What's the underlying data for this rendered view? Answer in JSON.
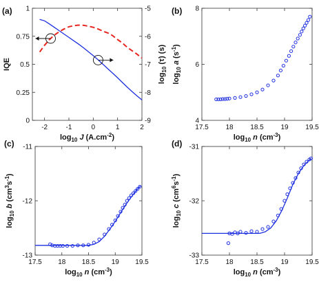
{
  "chart_data": [
    {
      "panel": "(a)",
      "type": "line",
      "xlabel": "log10 J (A.cm-2)",
      "xlabel_parts": {
        "pre": "log",
        "sub": "10",
        "var": "J",
        "unit": "(A.cm",
        "sup": "-2",
        "end": ")"
      },
      "ylabel": "IQE",
      "y2label": "log10 (τ) (s)",
      "y2label_parts": {
        "pre": "log",
        "sub": "10",
        "end": " (τ) (s)"
      },
      "xlim": [
        -2.5,
        2
      ],
      "ylim": [
        0,
        1
      ],
      "y2lim": [
        -9,
        -5
      ],
      "xticks": [
        "-2",
        "-1",
        "0",
        "1",
        "2"
      ],
      "xtick_values": [
        -2,
        -1,
        0,
        1,
        2
      ],
      "yticks": [
        "0",
        "0.25",
        "0.5",
        "0.75",
        "1"
      ],
      "ytick_values": [
        0,
        0.25,
        0.5,
        0.75,
        1
      ],
      "y2ticks": [
        "-5",
        "-6",
        "-7",
        "-8",
        "-9"
      ],
      "y2tick_values": [
        -5,
        -6,
        -7,
        -8,
        -9
      ],
      "series": [
        {
          "axis": "left",
          "style": "dashed",
          "color": "#e8251f",
          "x": [
            -2.2,
            -2.0,
            -1.8,
            -1.6,
            -1.4,
            -1.2,
            -1.0,
            -0.8,
            -0.6,
            -0.4,
            -0.2,
            0.0,
            0.2,
            0.4,
            0.6,
            0.8,
            1.0,
            1.2,
            1.4,
            1.6,
            1.8,
            2.0
          ],
          "y": [
            0.61,
            0.67,
            0.72,
            0.76,
            0.79,
            0.815,
            0.835,
            0.845,
            0.85,
            0.848,
            0.84,
            0.83,
            0.815,
            0.795,
            0.78,
            0.755,
            0.72,
            0.69,
            0.65,
            0.62,
            0.59,
            0.555
          ]
        },
        {
          "axis": "right",
          "style": "solid",
          "color": "#1d2fe0",
          "x": [
            -2.2,
            -2.0,
            -1.8,
            -1.6,
            -1.4,
            -1.2,
            -1.0,
            -0.8,
            -0.6,
            -0.4,
            -0.2,
            0.0,
            0.2,
            0.4,
            0.6,
            0.8,
            1.0,
            1.2,
            1.4,
            1.6,
            1.8,
            2.0
          ],
          "y": [
            -5.4,
            -5.45,
            -5.56,
            -5.68,
            -5.8,
            -5.92,
            -6.04,
            -6.16,
            -6.28,
            -6.41,
            -6.55,
            -6.69,
            -6.84,
            -7.0,
            -7.16,
            -7.32,
            -7.48,
            -7.65,
            -7.82,
            -7.98,
            -8.13,
            -8.27
          ]
        }
      ],
      "annotations": [
        {
          "type": "circle-arrow",
          "x": -1.75,
          "y": 0.73,
          "axis": "left",
          "direction": "left"
        },
        {
          "type": "circle-arrow",
          "x": 0.2,
          "y": -6.85,
          "axis": "right",
          "direction": "right"
        }
      ]
    },
    {
      "panel": "(b)",
      "type": "scatter",
      "xlabel": "log10 n (cm-3)",
      "xlabel_parts": {
        "pre": "log",
        "sub": "10",
        "var": "n",
        "unit": "(cm",
        "sup": "-3",
        "end": ")"
      },
      "ylabel": "log10 a (s-1)",
      "ylabel_parts": {
        "pre": "log",
        "sub": "10",
        "var": "a",
        "unit": "(s",
        "sup": "-1",
        "end": ")"
      },
      "xlim": [
        17.5,
        19.5
      ],
      "ylim": [
        4,
        8
      ],
      "xticks": [
        "17.5",
        "18",
        "18.5",
        "19",
        "19.5"
      ],
      "xtick_values": [
        17.5,
        18,
        18.5,
        19,
        19.5
      ],
      "yticks": [
        "4",
        "6",
        "8"
      ],
      "ytick_values": [
        4,
        6,
        8
      ],
      "series": [
        {
          "style": "markers",
          "color": "#1d2fe0",
          "x": [
            17.76,
            17.8,
            17.84,
            17.88,
            17.92,
            17.96,
            18.0,
            18.1,
            18.2,
            18.3,
            18.4,
            18.5,
            18.6,
            18.7,
            18.8,
            18.88,
            18.93,
            18.98,
            19.03,
            19.08,
            19.12,
            19.16,
            19.2,
            19.24,
            19.28,
            19.31,
            19.34,
            19.37,
            19.4,
            19.43,
            19.46
          ],
          "y": [
            4.75,
            4.75,
            4.75,
            4.76,
            4.76,
            4.77,
            4.78,
            4.8,
            4.83,
            4.87,
            4.93,
            5.0,
            5.1,
            5.25,
            5.42,
            5.6,
            5.78,
            5.95,
            6.13,
            6.3,
            6.47,
            6.63,
            6.78,
            6.92,
            7.05,
            7.17,
            7.28,
            7.38,
            7.48,
            7.58,
            7.7
          ]
        }
      ]
    },
    {
      "panel": "(c)",
      "type": "line",
      "xlabel": "log10 n (cm-3)",
      "xlabel_parts": {
        "pre": "log",
        "sub": "10",
        "var": "n",
        "unit": "(cm",
        "sup": "-3",
        "end": ")"
      },
      "ylabel": "log10 b (cm3s-1)",
      "ylabel_parts": {
        "pre": "log",
        "sub": "10",
        "var": "b",
        "unit": "(cm",
        "sup": "3",
        "mid": "s",
        "sup2": "-1",
        "end": ")"
      },
      "xlim": [
        17.5,
        19.5
      ],
      "ylim": [
        -13,
        -11
      ],
      "xticks": [
        "17.5",
        "18",
        "18.5",
        "19",
        "19.5"
      ],
      "xtick_values": [
        17.5,
        18,
        18.5,
        19,
        19.5
      ],
      "yticks": [
        "-11",
        "-12",
        "-13"
      ],
      "ytick_values": [
        -11,
        -12,
        -13
      ],
      "series": [
        {
          "style": "solid",
          "color": "#1d2fe0",
          "x": [
            17.5,
            18.5,
            18.6,
            18.7,
            18.8,
            18.9,
            19.0,
            19.1,
            19.2,
            19.3,
            19.4,
            19.47
          ],
          "y": [
            -12.82,
            -12.82,
            -12.8,
            -12.75,
            -12.65,
            -12.52,
            -12.38,
            -12.22,
            -12.07,
            -11.93,
            -11.8,
            -11.73
          ]
        },
        {
          "style": "markers",
          "color": "#1d2fe0",
          "x": [
            17.78,
            17.82,
            17.87,
            17.92,
            17.97,
            18.02,
            18.1,
            18.2,
            18.3,
            18.4,
            18.5,
            18.6,
            18.7,
            18.8,
            18.88,
            18.94,
            19.0,
            19.05,
            19.1,
            19.14,
            19.18,
            19.22,
            19.26,
            19.3,
            19.34,
            19.38,
            19.42,
            19.46
          ],
          "y": [
            -12.8,
            -12.82,
            -12.83,
            -12.83,
            -12.83,
            -12.83,
            -12.83,
            -12.83,
            -12.82,
            -12.82,
            -12.81,
            -12.77,
            -12.71,
            -12.62,
            -12.52,
            -12.44,
            -12.36,
            -12.28,
            -12.2,
            -12.13,
            -12.07,
            -12.0,
            -11.95,
            -11.9,
            -11.86,
            -11.82,
            -11.78,
            -11.74
          ]
        }
      ]
    },
    {
      "panel": "(d)",
      "type": "line",
      "xlabel": "log10 n (cm-3)",
      "xlabel_parts": {
        "pre": "log",
        "sub": "10",
        "var": "n",
        "unit": "(cm",
        "sup": "-3",
        "end": ")"
      },
      "ylabel": "log10 c (cm6s-1)",
      "ylabel_parts": {
        "pre": "log",
        "sub": "10",
        "var": "c",
        "unit": "(cm",
        "sup": "6",
        "mid": "s",
        "sup2": "-1",
        "end": ")"
      },
      "xlim": [
        17.5,
        19.5
      ],
      "ylim": [
        -33,
        -31
      ],
      "xticks": [
        "17.5",
        "18",
        "18.5",
        "19",
        "19.5"
      ],
      "xtick_values": [
        17.5,
        18,
        18.5,
        19,
        19.5
      ],
      "yticks": [
        "-31",
        "-32",
        "-33"
      ],
      "ytick_values": [
        -31,
        -32,
        -33
      ],
      "series": [
        {
          "style": "solid",
          "color": "#1d2fe0",
          "x": [
            17.5,
            18.55,
            18.65,
            18.75,
            18.85,
            18.95,
            19.05,
            19.15,
            19.25,
            19.35,
            19.45,
            19.48
          ],
          "y": [
            -32.6,
            -32.6,
            -32.57,
            -32.5,
            -32.37,
            -32.18,
            -31.95,
            -31.7,
            -31.5,
            -31.35,
            -31.25,
            -31.22
          ]
        },
        {
          "style": "markers",
          "color": "#1d2fe0",
          "x": [
            17.98,
            18.0,
            18.05,
            18.1,
            18.15,
            18.2,
            18.3,
            18.4,
            18.5,
            18.6,
            18.7,
            18.8,
            18.88,
            18.94,
            19.0,
            19.05,
            19.1,
            19.15,
            19.2,
            19.25,
            19.3,
            19.35,
            19.4,
            19.45,
            19.48
          ],
          "y": [
            -32.78,
            -32.6,
            -32.61,
            -32.58,
            -32.6,
            -32.57,
            -32.59,
            -32.56,
            -32.57,
            -32.52,
            -32.48,
            -32.38,
            -32.27,
            -32.15,
            -32.0,
            -31.88,
            -31.77,
            -31.67,
            -31.58,
            -31.48,
            -31.4,
            -31.33,
            -31.28,
            -31.24,
            -31.22
          ]
        }
      ]
    }
  ]
}
